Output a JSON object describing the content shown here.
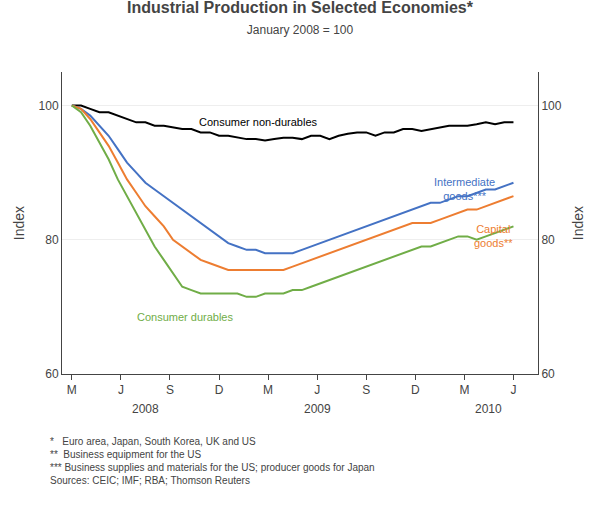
{
  "chart_data": {
    "type": "line",
    "title": "Industrial Production in Selected Economies*",
    "subtitle": "January 2008 = 100",
    "ylabel": "Index",
    "y2label": "Index",
    "x": [
      0,
      0.1875,
      0.375,
      0.5625,
      0.75,
      0.9375,
      1.125,
      1.3125,
      1.5,
      1.6875,
      1.875,
      2.0625,
      2.25,
      2.4375,
      2.625,
      2.8125,
      3,
      3.1875,
      3.375,
      3.5625,
      3.75,
      3.9375,
      4.125,
      4.3125,
      4.5,
      4.6875,
      4.875,
      5.0625,
      5.25,
      5.4375,
      5.625,
      5.8125,
      6,
      6.1875,
      6.375,
      6.5625,
      6.75,
      6.9375,
      7.125,
      7.3125,
      7.5,
      7.6875,
      7.875,
      8.0625,
      8.25,
      8.4375,
      8.625,
      8.8125,
      9
    ],
    "xlim": [
      -0.2,
      9.5
    ],
    "xticks": [
      {
        "value": 0,
        "label": "M"
      },
      {
        "value": 1,
        "label": "J"
      },
      {
        "value": 2,
        "label": "S"
      },
      {
        "value": 3,
        "label": "D"
      },
      {
        "value": 4,
        "label": "M"
      },
      {
        "value": 5,
        "label": "J"
      },
      {
        "value": 6,
        "label": "S"
      },
      {
        "value": 7,
        "label": "D"
      },
      {
        "value": 8,
        "label": "M"
      },
      {
        "value": 9,
        "label": "J"
      }
    ],
    "x_year_labels": [
      {
        "text": "2008",
        "x": 1.5
      },
      {
        "text": "2009",
        "x": 5.0
      },
      {
        "text": "2010",
        "x": 8.5
      }
    ],
    "ylim": [
      60,
      105
    ],
    "yticks": [
      60,
      80,
      100
    ],
    "y2lim": [
      60,
      105
    ],
    "y2ticks": [
      60,
      80,
      100
    ],
    "grid": true,
    "footnotes": [
      "*   Euro area, Japan, South Korea, UK and US",
      "**  Business equipment for the US",
      "*** Business supplies and materials for the US; producer goods for Japan",
      "Sources: CEIC; IMF; RBA; Thomson Reuters"
    ],
    "series": [
      {
        "name": "Consumer non-durables",
        "color": "#000000",
        "label_xy": [
          3.8,
          97.5
        ],
        "values": [
          100,
          100,
          99.5,
          99,
          99,
          98.5,
          98,
          97.5,
          97.5,
          97,
          97,
          96.8,
          96.5,
          96.5,
          96,
          96,
          95.5,
          95.5,
          95.2,
          95,
          95,
          94.8,
          95,
          95.2,
          95.2,
          95,
          95.5,
          95.5,
          95,
          95.5,
          95.8,
          96,
          96,
          95.5,
          96,
          96,
          96.5,
          96.5,
          96.2,
          96.5,
          96.8,
          97,
          97,
          97,
          97.2,
          97.5,
          97.2,
          97.5,
          97.5
        ]
      },
      {
        "name": "Intermediate\ngoods***",
        "color": "#4472c4",
        "label_xy": [
          8.0,
          87.5
        ],
        "values": [
          100,
          99.5,
          98.5,
          97,
          95.5,
          93.5,
          91.5,
          90,
          88.5,
          87.5,
          86.5,
          85.5,
          84.5,
          83.5,
          82.5,
          81.5,
          80.5,
          79.5,
          79,
          78.5,
          78.5,
          78,
          78,
          78,
          78,
          78.5,
          79,
          79.5,
          80,
          80.5,
          81,
          81.5,
          82,
          82.5,
          83,
          83.5,
          84,
          84.5,
          85,
          85.5,
          85.5,
          86,
          86.5,
          86.5,
          87,
          87.5,
          87.5,
          88,
          88.5
        ]
      },
      {
        "name": "Capital\ngoods**",
        "color": "#ed7d31",
        "label_xy": [
          8.6,
          80.5
        ],
        "values": [
          100,
          99.5,
          98,
          96,
          94,
          91.5,
          89,
          87,
          85,
          83.5,
          82,
          80,
          79,
          78,
          77,
          76.5,
          76,
          75.5,
          75.5,
          75.5,
          75.5,
          75.5,
          75.5,
          75.5,
          76,
          76.5,
          77,
          77.5,
          78,
          78.5,
          79,
          79.5,
          80,
          80.5,
          81,
          81.5,
          82,
          82.5,
          82.5,
          82.5,
          83,
          83.5,
          84,
          84.5,
          84.5,
          85,
          85.5,
          86,
          86.5
        ]
      },
      {
        "name": "Consumer durables",
        "color": "#70ad47",
        "label_xy": [
          2.3,
          68.5
        ],
        "values": [
          100,
          99,
          97,
          94.5,
          92,
          89,
          86.5,
          84,
          81.5,
          79,
          77,
          75,
          73,
          72.5,
          72,
          72,
          72,
          72,
          72,
          71.5,
          71.5,
          72,
          72,
          72,
          72.5,
          72.5,
          73,
          73.5,
          74,
          74.5,
          75,
          75.5,
          76,
          76.5,
          77,
          77.5,
          78,
          78.5,
          79,
          79,
          79.5,
          80,
          80.5,
          80.5,
          80,
          80.5,
          81,
          81.5,
          82
        ]
      }
    ]
  }
}
